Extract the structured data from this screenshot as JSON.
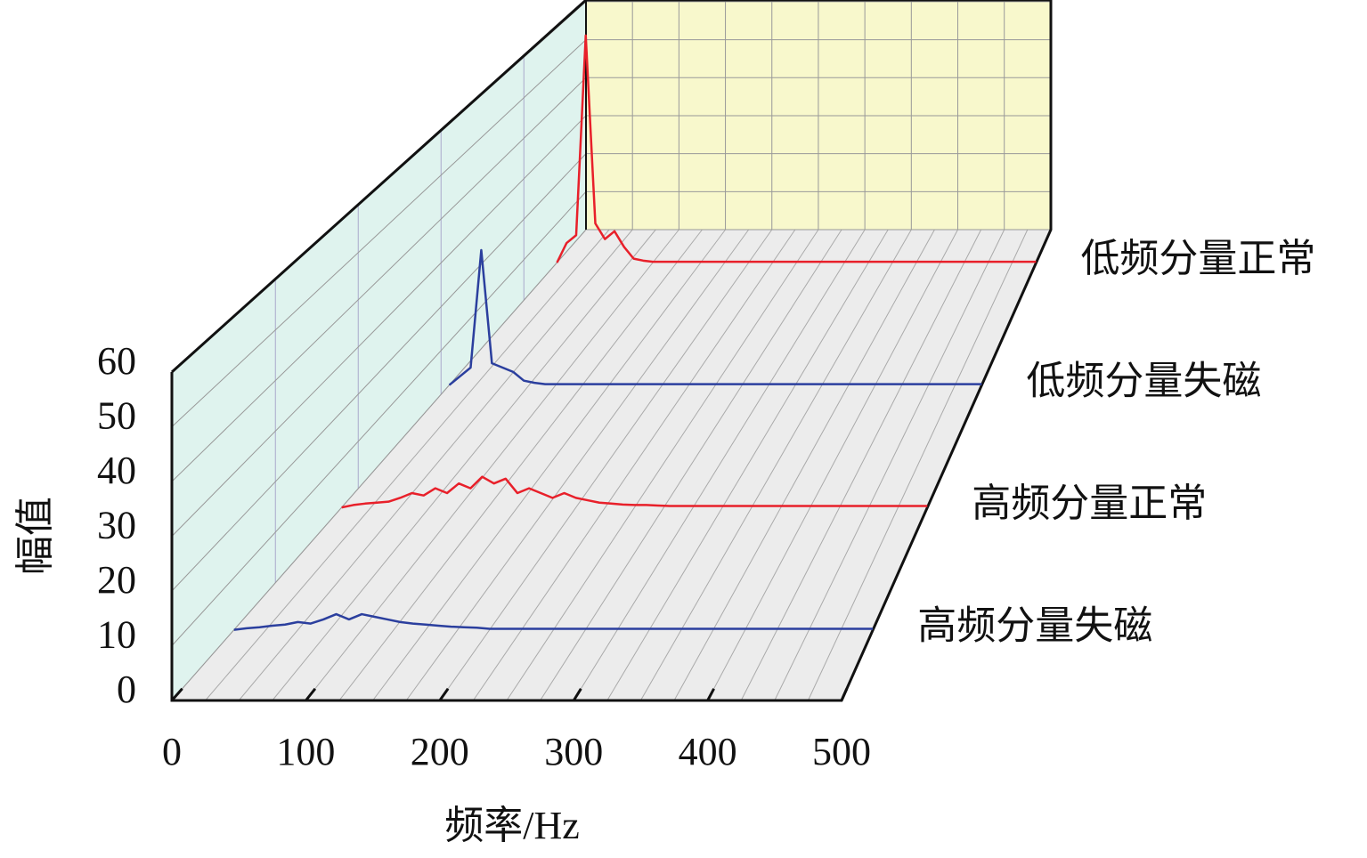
{
  "chart_data": {
    "type": "waterfall3d",
    "xlabel": "频率/Hz",
    "ylabel": "幅值",
    "xlim": [
      0,
      500
    ],
    "ylim": [
      0,
      60
    ],
    "xticks": [
      0,
      100,
      200,
      300,
      400,
      500
    ],
    "yticks": [
      0,
      10,
      20,
      30,
      40,
      50,
      60
    ],
    "grid": true,
    "x": [
      0,
      10,
      20,
      30,
      40,
      50,
      60,
      70,
      80,
      90,
      100,
      110,
      120,
      130,
      140,
      150,
      160,
      170,
      180,
      190,
      200,
      210,
      220,
      230,
      240,
      250,
      260,
      270,
      280,
      290,
      300,
      310,
      320,
      330,
      340,
      350,
      360,
      370,
      380,
      390,
      400,
      410,
      420,
      430,
      440,
      450,
      460,
      470,
      480,
      490,
      500
    ],
    "series": [
      {
        "name": "高频分量失磁",
        "color": "#2b3f9e",
        "values": [
          0,
          0.3,
          0.5,
          0.8,
          1,
          1.5,
          1.2,
          2,
          3,
          2,
          3,
          2.5,
          2,
          1.5,
          1.2,
          1,
          0.8,
          0.6,
          0.5,
          0.4,
          0.2,
          0.2,
          0.2,
          0.2,
          0.2,
          0.2,
          0.2,
          0.2,
          0.2,
          0.2,
          0.2,
          0.2,
          0.2,
          0.2,
          0.2,
          0.2,
          0.2,
          0.2,
          0.2,
          0.2,
          0.2,
          0.2,
          0.2,
          0.2,
          0.2,
          0.2,
          0.2,
          0.2,
          0.2,
          0.2,
          0.2
        ]
      },
      {
        "name": "高频分量正常",
        "color": "#e8202a",
        "values": [
          0,
          0.5,
          0.8,
          1,
          1.2,
          2,
          3,
          2.5,
          4,
          3,
          5,
          4,
          6.4,
          5,
          6,
          3,
          4,
          3,
          2,
          3,
          2,
          1.5,
          1,
          0.8,
          0.6,
          0.5,
          0.5,
          0.4,
          0.3,
          0.3,
          0.3,
          0.3,
          0.3,
          0.3,
          0.3,
          0.3,
          0.3,
          0.3,
          0.3,
          0.3,
          0.3,
          0.3,
          0.3,
          0.3,
          0.3,
          0.3,
          0.3,
          0.3,
          0.3,
          0.3,
          0.3
        ]
      },
      {
        "name": "低频分量失磁",
        "color": "#2b3f9e",
        "values": [
          0,
          2,
          4,
          31,
          5,
          4,
          3,
          1,
          0.5,
          0.2,
          0.2,
          0.2,
          0.2,
          0.2,
          0.2,
          0.2,
          0.2,
          0.2,
          0.2,
          0.2,
          0.2,
          0.2,
          0.2,
          0.2,
          0.2,
          0.2,
          0.2,
          0.2,
          0.2,
          0.2,
          0.2,
          0.2,
          0.2,
          0.2,
          0.2,
          0.2,
          0.2,
          0.2,
          0.2,
          0.2,
          0.2,
          0.2,
          0.2,
          0.2,
          0.2,
          0.2,
          0.2,
          0.2,
          0.2,
          0.2,
          0.2
        ]
      },
      {
        "name": "低频分量正常",
        "color": "#e8202a",
        "values": [
          0,
          5,
          7,
          58,
          10,
          6,
          8,
          4,
          1,
          0.5,
          0.2,
          0.2,
          0.2,
          0.2,
          0.2,
          0.2,
          0.2,
          0.2,
          0.2,
          0.2,
          0.2,
          0.2,
          0.2,
          0.2,
          0.2,
          0.2,
          0.2,
          0.2,
          0.2,
          0.2,
          0.2,
          0.2,
          0.2,
          0.2,
          0.2,
          0.2,
          0.2,
          0.2,
          0.2,
          0.2,
          0.2,
          0.2,
          0.2,
          0.2,
          0.2,
          0.2,
          0.2,
          0.2,
          0.2,
          0.2,
          0.2
        ]
      }
    ]
  }
}
